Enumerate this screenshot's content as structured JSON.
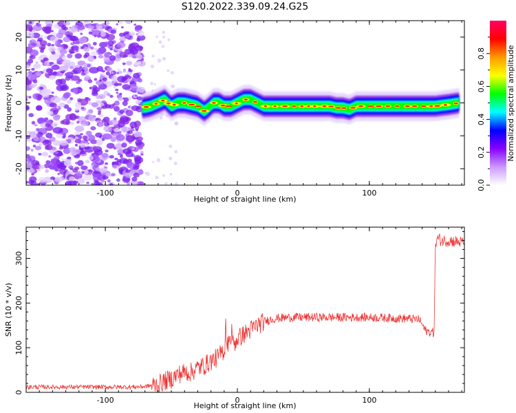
{
  "title": "S120.2022.339.09.24.G25",
  "chart_data": [
    {
      "type": "heatmap",
      "title": "S120.2022.339.09.24.G25",
      "xlabel": "Height of straight line (km)",
      "ylabel": "Frequency (Hz)",
      "xlim": [
        -160,
        172
      ],
      "ylim": [
        -25,
        25
      ],
      "x_ticks": [
        -100,
        0,
        100
      ],
      "x_tick_labels": [
        "-100",
        "0",
        "100"
      ],
      "y_ticks": [
        -20,
        -10,
        0,
        10,
        20
      ],
      "y_tick_labels": [
        "-20",
        "-10",
        "0",
        "10",
        "20"
      ],
      "colorbar": {
        "label": "Normalized spectral amplitude",
        "range": [
          0,
          1
        ],
        "ticks": [
          "0.0",
          "0.2",
          "0.4",
          "0.6",
          "0.8"
        ],
        "colormap": [
          "#ffffff",
          "#cc99ff",
          "#8800ff",
          "#0000ff",
          "#00ffff",
          "#00ff00",
          "#ffff00",
          "#ff9900",
          "#ff0000",
          "#ff0066"
        ]
      },
      "noise_region_x": [
        -160,
        -72
      ],
      "ridge": {
        "x": [
          -72,
          -66,
          -60,
          -55,
          -50,
          -45,
          -40,
          -35,
          -30,
          -25,
          -22,
          -18,
          -14,
          -10,
          -5,
          0,
          5,
          10,
          15,
          20,
          25,
          30,
          40,
          50,
          60,
          70,
          75,
          80,
          85,
          90,
          95,
          100,
          110,
          120,
          130,
          140,
          150,
          160,
          168
        ],
        "frequency_hz": [
          -1.5,
          -1,
          0,
          1,
          -1,
          0,
          0,
          -0.5,
          -1,
          -2.5,
          -1.5,
          0,
          0,
          -1,
          -1,
          0,
          1,
          1,
          0,
          -1,
          -1,
          -1,
          -1,
          -1,
          -1,
          -1,
          -1.5,
          -1.5,
          -2,
          -1,
          -1,
          -1,
          -1,
          -1,
          -1,
          -1,
          -1,
          -0.5,
          0
        ]
      }
    },
    {
      "type": "line",
      "xlabel": "Height of straight line (km)",
      "ylabel": "SNR (10 * v/v)",
      "xlim": [
        -160,
        172
      ],
      "ylim": [
        0,
        370
      ],
      "x_ticks": [
        -100,
        0,
        100
      ],
      "x_tick_labels": [
        "-100",
        "0",
        "100"
      ],
      "y_ticks": [
        0,
        100,
        200,
        300
      ],
      "y_tick_labels": [
        "0",
        "100",
        "200",
        "300"
      ],
      "color": "#ee3333",
      "x": [
        -160,
        -140,
        -120,
        -100,
        -80,
        -70,
        -60,
        -55,
        -50,
        -45,
        -40,
        -35,
        -30,
        -25,
        -20,
        -15,
        -10,
        -8,
        -6,
        -4,
        -2,
        0,
        5,
        10,
        15,
        20,
        25,
        30,
        40,
        50,
        60,
        70,
        80,
        90,
        100,
        110,
        120,
        130,
        138,
        142,
        145,
        149,
        150,
        151,
        155,
        160,
        165,
        172
      ],
      "y": [
        12,
        12,
        12,
        12,
        12,
        13,
        18,
        25,
        30,
        40,
        45,
        45,
        55,
        60,
        70,
        78,
        95,
        105,
        120,
        110,
        110,
        120,
        130,
        140,
        150,
        158,
        163,
        166,
        168,
        168,
        168,
        168,
        168,
        168,
        168,
        167,
        166,
        165,
        163,
        140,
        135,
        135,
        320,
        345,
        340,
        340,
        338,
        335
      ]
    }
  ]
}
